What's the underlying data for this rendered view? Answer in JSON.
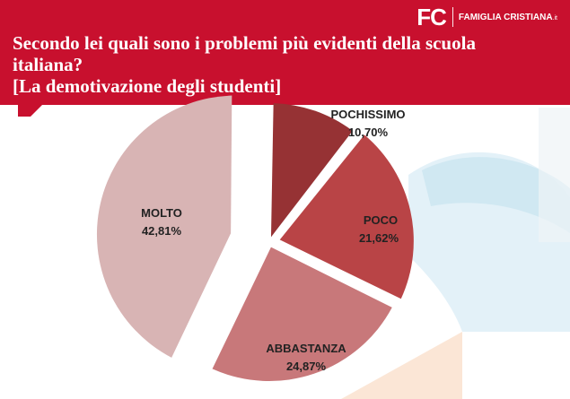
{
  "header": {
    "logo_mark": "FC",
    "logo_text": "FAMIGLIA CRISTIANA",
    "logo_suffix": ".it",
    "title_line1": "Secondo lei quali sono i problemi più evidenti della scuola",
    "title_line2": "italiana?",
    "subtitle": "[La demotivazione degli studenti]",
    "color": "#c8102e"
  },
  "chart_data": {
    "type": "pie",
    "title": "Secondo lei quali sono i problemi più evidenti della scuola italiana? [La demotivazione degli studenti]",
    "slices": [
      {
        "label": "POCHISSIMO",
        "value": 10.7,
        "value_label": "10,70%",
        "color": "#963234"
      },
      {
        "label": "POCO",
        "value": 21.62,
        "value_label": "21,62%",
        "color": "#b94446"
      },
      {
        "label": "ABBASTANZA",
        "value": 24.87,
        "value_label": "24,87%",
        "color": "#c8787a"
      },
      {
        "label": "MOLTO",
        "value": 42.81,
        "value_label": "42,81%",
        "color": "#d8b4b4"
      }
    ],
    "legend": "none"
  }
}
